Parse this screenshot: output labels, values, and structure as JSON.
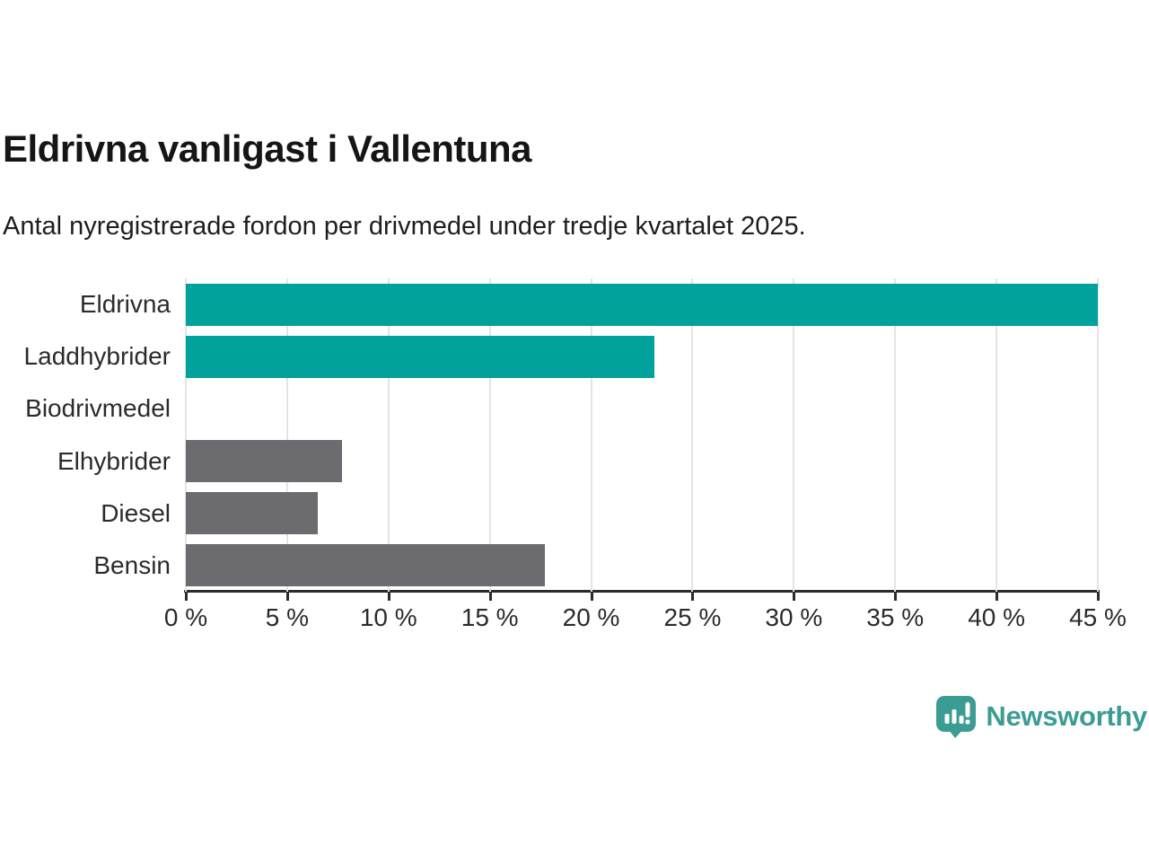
{
  "chart_data": {
    "type": "bar",
    "orientation": "horizontal",
    "title": "Eldrivna vanligast i Vallentuna",
    "subtitle": "Antal nyregistrerade fordon per drivmedel under tredje kvartalet 2025.",
    "categories": [
      "Eldrivna",
      "Laddhybrider",
      "Biodrivmedel",
      "Elhybrider",
      "Diesel",
      "Bensin"
    ],
    "values": [
      45.0,
      23.1,
      0,
      7.7,
      6.5,
      17.7
    ],
    "unit": "%",
    "xlim": [
      0,
      45
    ],
    "x_ticks": [
      0,
      5,
      10,
      15,
      20,
      25,
      30,
      35,
      40,
      45
    ],
    "x_tick_labels": [
      "0 %",
      "5 %",
      "10 %",
      "15 %",
      "20 %",
      "25 %",
      "30 %",
      "35 %",
      "40 %",
      "45 %"
    ],
    "grid": true,
    "legend_position": "none",
    "bar_colors": [
      "#00a29b",
      "#00a29b",
      "#6b6b70",
      "#6b6b70",
      "#6b6b70",
      "#6b6b70"
    ],
    "highlight_color": "#00a29b",
    "default_color": "#6b6b70",
    "gridline_color": "#e4e4e4",
    "axis_color": "#2b2b2b"
  },
  "footer": {
    "brand": "Newsworthy",
    "brand_color": "#3b9c94",
    "logo_icon": "newsworthy-speech-bubble-chart-icon"
  }
}
